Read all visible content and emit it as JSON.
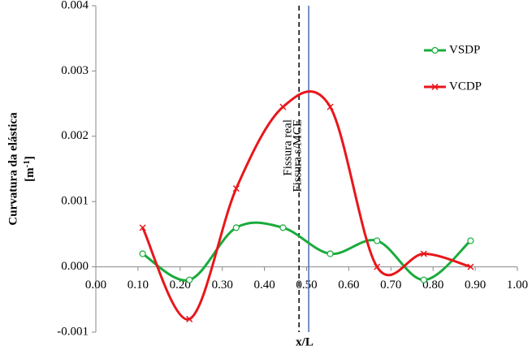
{
  "chart_data": {
    "type": "line",
    "x": [
      0.111,
      0.222,
      0.333,
      0.444,
      0.556,
      0.667,
      0.778,
      0.889
    ],
    "series": [
      {
        "name": "VSDP",
        "color": "#1aab3c",
        "marker": "circle",
        "values": [
          0.0002,
          -0.0002,
          0.0006,
          0.0006,
          0.0002,
          0.0004,
          -0.0002,
          0.0004
        ]
      },
      {
        "name": "VCDP",
        "color": "#e8161b",
        "marker": "x",
        "values": [
          0.0006,
          -0.0008,
          0.0012,
          0.00245,
          0.00245,
          0.0,
          0.0002,
          0.0
        ]
      }
    ],
    "xlim": [
      0,
      1
    ],
    "ylim": [
      -0.001,
      0.004
    ],
    "xticks": [
      {
        "value": 0,
        "label": "0.00"
      },
      {
        "value": 0.1,
        "label": "0.10"
      },
      {
        "value": 0.2,
        "label": "0.20"
      },
      {
        "value": 0.3,
        "label": "0.30"
      },
      {
        "value": 0.4,
        "label": "0.40"
      },
      {
        "value": 0.5,
        "label": "0.50"
      },
      {
        "value": 0.6,
        "label": "0.60"
      },
      {
        "value": 0.7,
        "label": "0.70"
      },
      {
        "value": 0.8,
        "label": "0.80"
      },
      {
        "value": 0.9,
        "label": "0.90"
      },
      {
        "value": 1,
        "label": "1.00"
      }
    ],
    "yticks": [
      {
        "value": -0.001,
        "label": "-0.001"
      },
      {
        "value": 0,
        "label": "0.000"
      },
      {
        "value": 0.001,
        "label": "0.001"
      },
      {
        "value": 0.002,
        "label": "0.002"
      },
      {
        "value": 0.003,
        "label": "0.003"
      },
      {
        "value": 0.004,
        "label": "0.004"
      }
    ],
    "xlabel": "x/L",
    "ylabel": "Curvatura da elástica",
    "ylabel_unit": {
      "open": "[m",
      "sup": "-1",
      "close": "]"
    },
    "vlines": [
      {
        "x": 0.482,
        "label": "Fissura real",
        "color": "#000000",
        "dashed": true
      },
      {
        "x": 0.505,
        "label": "Fissura s/MCE",
        "color": "#4a6db5",
        "dashed": false
      }
    ],
    "legend": "right"
  }
}
